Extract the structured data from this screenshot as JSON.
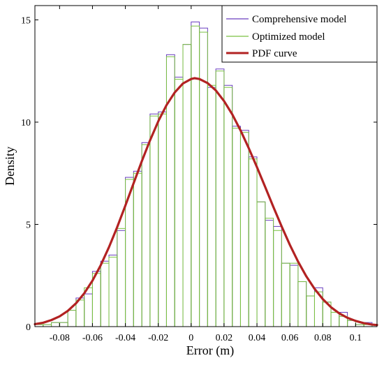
{
  "chart_data": {
    "type": "bar",
    "xlabel": "Error (m)",
    "ylabel": "Density",
    "xlim": [
      -0.095,
      0.113
    ],
    "ylim": [
      0,
      15.7
    ],
    "xticks": [
      -0.08,
      -0.06,
      -0.04,
      -0.02,
      0,
      0.02,
      0.04,
      0.06,
      0.08,
      0.1
    ],
    "xtick_labels": [
      "-0.08",
      "-0.06",
      "-0.04",
      "-0.02",
      "0",
      "0.02",
      "0.04",
      "0.06",
      "0.08",
      "0.1"
    ],
    "yticks": [
      0,
      5,
      10,
      15
    ],
    "ytick_labels": [
      "0",
      "5",
      "10",
      "15"
    ],
    "grid": false,
    "legend_position": "top-right",
    "bin_edges": [
      -0.095,
      -0.09,
      -0.085,
      -0.08,
      -0.075,
      -0.07,
      -0.065,
      -0.06,
      -0.055,
      -0.05,
      -0.045,
      -0.04,
      -0.035,
      -0.03,
      -0.025,
      -0.02,
      -0.015,
      -0.01,
      -0.005,
      0.0,
      0.005,
      0.01,
      0.015,
      0.02,
      0.025,
      0.03,
      0.035,
      0.04,
      0.045,
      0.05,
      0.055,
      0.06,
      0.065,
      0.07,
      0.075,
      0.08,
      0.085,
      0.09,
      0.095,
      0.1,
      0.105,
      0.11
    ],
    "series": [
      {
        "name": "Comprehensive model",
        "color": "#6a3fbf",
        "style": "histogram",
        "values": [
          0.1,
          0.1,
          0.2,
          0.2,
          0.8,
          1.4,
          1.6,
          2.7,
          3.2,
          3.5,
          4.7,
          7.3,
          7.6,
          9.0,
          10.4,
          10.5,
          13.3,
          12.2,
          13.8,
          14.9,
          14.6,
          11.7,
          12.6,
          11.8,
          9.8,
          9.6,
          8.3,
          6.1,
          5.2,
          4.9,
          3.1,
          3.0,
          2.2,
          1.5,
          1.9,
          1.2,
          0.7,
          0.7,
          0.3,
          0.1,
          0.2
        ]
      },
      {
        "name": "Optimized model",
        "color": "#7ac142",
        "style": "histogram",
        "values": [
          0.1,
          0.1,
          0.2,
          0.2,
          0.8,
          1.3,
          1.9,
          2.6,
          3.1,
          3.4,
          4.8,
          7.2,
          7.5,
          8.9,
          10.3,
          10.4,
          13.2,
          12.1,
          13.8,
          14.7,
          14.4,
          11.8,
          12.5,
          11.7,
          9.7,
          9.5,
          8.2,
          6.1,
          5.3,
          4.7,
          3.1,
          3.1,
          2.2,
          1.5,
          1.7,
          1.2,
          0.7,
          0.5,
          0.3,
          0.1,
          0.1
        ]
      },
      {
        "name": "PDF curve",
        "color": "#b22222",
        "style": "line",
        "x": [
          -0.095,
          -0.09,
          -0.085,
          -0.08,
          -0.075,
          -0.07,
          -0.065,
          -0.06,
          -0.055,
          -0.05,
          -0.045,
          -0.04,
          -0.035,
          -0.03,
          -0.025,
          -0.02,
          -0.015,
          -0.01,
          -0.005,
          0.0,
          0.002,
          0.005,
          0.01,
          0.015,
          0.02,
          0.025,
          0.03,
          0.035,
          0.04,
          0.045,
          0.05,
          0.055,
          0.06,
          0.065,
          0.07,
          0.075,
          0.08,
          0.085,
          0.09,
          0.095,
          0.1,
          0.105,
          0.11,
          0.113
        ],
        "y": [
          0.12,
          0.19,
          0.32,
          0.5,
          0.77,
          1.14,
          1.63,
          2.25,
          3.0,
          3.88,
          4.86,
          5.92,
          7.01,
          8.09,
          9.11,
          10.04,
          10.83,
          11.45,
          11.89,
          12.11,
          12.15,
          12.11,
          11.91,
          11.55,
          11.03,
          10.38,
          9.6,
          8.73,
          7.8,
          6.83,
          5.85,
          4.9,
          4.0,
          3.18,
          2.46,
          1.85,
          1.35,
          0.95,
          0.65,
          0.43,
          0.28,
          0.17,
          0.1,
          0.08
        ]
      }
    ]
  }
}
